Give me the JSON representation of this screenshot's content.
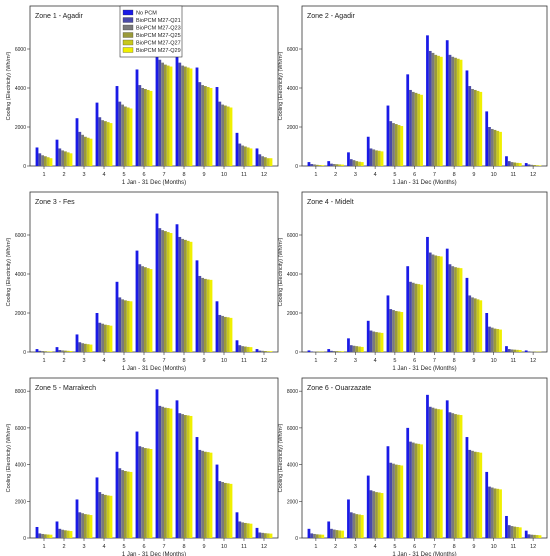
{
  "legend": [
    "No PCM",
    "BioPCM M27-Q21",
    "BioPCM M27-Q23",
    "BioPCM M27-Q25",
    "BioPCM M27-Q27",
    "BioPCM M27-Q29"
  ],
  "series_colors": [
    "#1a1ae6",
    "#4a4aa8",
    "#7a7a7a",
    "#9a9a3a",
    "#c8c81e",
    "#f0f000"
  ],
  "chart_data": [
    {
      "type": "bar",
      "title": "Zone 1 - Agadir",
      "xlabel": "1 Jan - 31 Dec (Months)",
      "ylabel": "Cooling (Electricity) (Wh/m²)",
      "categories": [
        "1",
        "2",
        "3",
        "4",
        "5",
        "6",
        "7",
        "8",
        "9",
        "10",
        "11",
        "12"
      ],
      "ylim": [
        0,
        8000
      ],
      "yticks": [
        0,
        2000,
        4000,
        6000
      ],
      "legend_position": "top-right",
      "series": [
        {
          "name": "No PCM",
          "values": [
            950,
            1350,
            2450,
            3250,
            4100,
            4950,
            6300,
            6100,
            5050,
            4050,
            1700,
            900
          ]
        },
        {
          "name": "BioPCM M27-Q21",
          "values": [
            650,
            900,
            1750,
            2500,
            3300,
            4150,
            5450,
            5300,
            4300,
            3300,
            1150,
            600
          ]
        },
        {
          "name": "BioPCM M27-Q23",
          "values": [
            550,
            800,
            1600,
            2350,
            3150,
            4000,
            5300,
            5150,
            4150,
            3150,
            1050,
            500
          ]
        },
        {
          "name": "BioPCM M27-Q25",
          "values": [
            500,
            750,
            1500,
            2300,
            3050,
            3950,
            5200,
            5100,
            4100,
            3100,
            1000,
            450
          ]
        },
        {
          "name": "BioPCM M27-Q27",
          "values": [
            450,
            700,
            1450,
            2250,
            3000,
            3900,
            5150,
            5050,
            4050,
            3050,
            950,
            400
          ]
        },
        {
          "name": "BioPCM M27-Q29",
          "values": [
            400,
            650,
            1400,
            2200,
            2950,
            3850,
            5100,
            5000,
            4000,
            3000,
            900,
            400
          ]
        }
      ]
    },
    {
      "type": "bar",
      "title": "Zone 2 - Agadir",
      "xlabel": "1 Jan - 31 Dec (Months)",
      "ylabel": "Cooling (Electricity) (Wh/m²)",
      "categories": [
        "1",
        "2",
        "3",
        "4",
        "5",
        "6",
        "7",
        "8",
        "9",
        "10",
        "11",
        "12"
      ],
      "ylim": [
        0,
        8000
      ],
      "yticks": [
        0,
        2000,
        4000,
        6000
      ],
      "series": [
        {
          "name": "No PCM",
          "values": [
            200,
            250,
            700,
            1500,
            3100,
            4700,
            6700,
            6450,
            4900,
            2800,
            500,
            150
          ]
        },
        {
          "name": "BioPCM M27-Q21",
          "values": [
            100,
            120,
            350,
            900,
            2300,
            3900,
            5900,
            5700,
            4100,
            2000,
            250,
            80
          ]
        },
        {
          "name": "BioPCM M27-Q23",
          "values": [
            80,
            100,
            300,
            850,
            2200,
            3800,
            5800,
            5600,
            3950,
            1900,
            200,
            60
          ]
        },
        {
          "name": "BioPCM M27-Q25",
          "values": [
            60,
            90,
            250,
            800,
            2150,
            3750,
            5700,
            5550,
            3900,
            1850,
            180,
            50
          ]
        },
        {
          "name": "BioPCM M27-Q27",
          "values": [
            50,
            80,
            220,
            780,
            2100,
            3700,
            5650,
            5500,
            3850,
            1800,
            160,
            40
          ]
        },
        {
          "name": "BioPCM M27-Q29",
          "values": [
            40,
            70,
            200,
            750,
            2050,
            3650,
            5600,
            5450,
            3800,
            1750,
            150,
            30
          ]
        }
      ]
    },
    {
      "type": "bar",
      "title": "Zone 3 - Fes",
      "xlabel": "1 Jan - 31 Dec (Months)",
      "ylabel": "Cooling (Electricity) (Wh/m²)",
      "categories": [
        "1",
        "2",
        "3",
        "4",
        "5",
        "6",
        "7",
        "8",
        "9",
        "10",
        "11",
        "12"
      ],
      "ylim": [
        0,
        8000
      ],
      "yticks": [
        0,
        2000,
        4000,
        6000
      ],
      "series": [
        {
          "name": "No PCM",
          "values": [
            150,
            250,
            900,
            2000,
            3600,
            5200,
            7100,
            6550,
            4700,
            2600,
            600,
            150
          ]
        },
        {
          "name": "BioPCM M27-Q21",
          "values": [
            60,
            100,
            500,
            1500,
            2800,
            4500,
            6350,
            5900,
            3900,
            1900,
            350,
            70
          ]
        },
        {
          "name": "BioPCM M27-Q23",
          "values": [
            50,
            80,
            450,
            1450,
            2700,
            4400,
            6250,
            5800,
            3800,
            1850,
            300,
            60
          ]
        },
        {
          "name": "BioPCM M27-Q25",
          "values": [
            40,
            70,
            420,
            1400,
            2650,
            4350,
            6200,
            5750,
            3750,
            1800,
            280,
            50
          ]
        },
        {
          "name": "BioPCM M27-Q27",
          "values": [
            30,
            60,
            400,
            1380,
            2620,
            4300,
            6150,
            5700,
            3720,
            1780,
            260,
            40
          ]
        },
        {
          "name": "BioPCM M27-Q29",
          "values": [
            30,
            50,
            380,
            1350,
            2600,
            4250,
            6100,
            5650,
            3700,
            1750,
            250,
            40
          ]
        }
      ]
    },
    {
      "type": "bar",
      "title": "Zone 4 - Midelt",
      "xlabel": "1 Jan - 31 Dec (Months)",
      "ylabel": "Cooling (Electricity) (Wh/m²)",
      "categories": [
        "1",
        "2",
        "3",
        "4",
        "5",
        "6",
        "7",
        "8",
        "9",
        "10",
        "11",
        "12"
      ],
      "ylim": [
        0,
        8000
      ],
      "yticks": [
        0,
        2000,
        4000,
        6000
      ],
      "series": [
        {
          "name": "No PCM",
          "values": [
            80,
            150,
            700,
            1600,
            2900,
            4400,
            5900,
            5300,
            3800,
            2000,
            300,
            80
          ]
        },
        {
          "name": "BioPCM M27-Q21",
          "values": [
            30,
            60,
            350,
            1100,
            2200,
            3600,
            5100,
            4500,
            2900,
            1300,
            150,
            30
          ]
        },
        {
          "name": "BioPCM M27-Q23",
          "values": [
            25,
            50,
            320,
            1050,
            2150,
            3550,
            5000,
            4400,
            2800,
            1250,
            130,
            25
          ]
        },
        {
          "name": "BioPCM M27-Q25",
          "values": [
            20,
            45,
            300,
            1020,
            2100,
            3500,
            4950,
            4350,
            2750,
            1200,
            120,
            20
          ]
        },
        {
          "name": "BioPCM M27-Q27",
          "values": [
            20,
            40,
            280,
            1000,
            2080,
            3480,
            4920,
            4320,
            2700,
            1180,
            110,
            20
          ]
        },
        {
          "name": "BioPCM M27-Q29",
          "values": [
            15,
            35,
            260,
            980,
            2050,
            3450,
            4900,
            4300,
            2650,
            1150,
            100,
            15
          ]
        }
      ]
    },
    {
      "type": "bar",
      "title": "Zone 5 - Marrakech",
      "xlabel": "1 Jan - 31 Dec (Months)",
      "ylabel": "Cooling (Electricity) (Wh/m²)",
      "categories": [
        "1",
        "2",
        "3",
        "4",
        "5",
        "6",
        "7",
        "8",
        "9",
        "10",
        "11",
        "12"
      ],
      "ylim": [
        0,
        8500
      ],
      "yticks": [
        0,
        2000,
        4000,
        6000,
        8000
      ],
      "series": [
        {
          "name": "No PCM",
          "values": [
            600,
            900,
            2100,
            3300,
            4700,
            5800,
            8100,
            7500,
            5500,
            4000,
            1400,
            550
          ]
        },
        {
          "name": "BioPCM M27-Q21",
          "values": [
            250,
            500,
            1400,
            2500,
            3800,
            5000,
            7200,
            6800,
            4800,
            3100,
            900,
            300
          ]
        },
        {
          "name": "BioPCM M27-Q23",
          "values": [
            220,
            450,
            1350,
            2400,
            3700,
            4950,
            7150,
            6750,
            4750,
            3050,
            850,
            280
          ]
        },
        {
          "name": "BioPCM M27-Q25",
          "values": [
            200,
            420,
            1300,
            2350,
            3650,
            4900,
            7100,
            6700,
            4700,
            3000,
            820,
            260
          ]
        },
        {
          "name": "BioPCM M27-Q27",
          "values": [
            190,
            400,
            1280,
            2320,
            3620,
            4880,
            7080,
            6680,
            4680,
            2980,
            800,
            250
          ]
        },
        {
          "name": "BioPCM M27-Q29",
          "values": [
            180,
            380,
            1250,
            2300,
            3600,
            4850,
            7050,
            6650,
            4650,
            2950,
            780,
            240
          ]
        }
      ]
    },
    {
      "type": "bar",
      "title": "Zone 6 - Ouarzazate",
      "xlabel": "1 Jan - 31 Dec (Months)",
      "ylabel": "Cooling (Electricity) (Wh/m²)",
      "categories": [
        "1",
        "2",
        "3",
        "4",
        "5",
        "6",
        "7",
        "8",
        "9",
        "10",
        "11",
        "12"
      ],
      "ylim": [
        0,
        8500
      ],
      "yticks": [
        0,
        2000,
        4000,
        6000,
        8000
      ],
      "series": [
        {
          "name": "No PCM",
          "values": [
            500,
            900,
            2100,
            3400,
            5000,
            6000,
            7800,
            7500,
            5500,
            3600,
            1200,
            400
          ]
        },
        {
          "name": "BioPCM M27-Q21",
          "values": [
            250,
            500,
            1400,
            2600,
            4100,
            5250,
            7150,
            6850,
            4800,
            2800,
            700,
            200
          ]
        },
        {
          "name": "BioPCM M27-Q23",
          "values": [
            220,
            460,
            1350,
            2550,
            4050,
            5200,
            7100,
            6800,
            4750,
            2750,
            650,
            180
          ]
        },
        {
          "name": "BioPCM M27-Q25",
          "values": [
            200,
            430,
            1300,
            2500,
            4000,
            5150,
            7050,
            6750,
            4700,
            2700,
            620,
            170
          ]
        },
        {
          "name": "BioPCM M27-Q27",
          "values": [
            190,
            410,
            1280,
            2480,
            3980,
            5130,
            7020,
            6720,
            4680,
            2680,
            600,
            160
          ]
        },
        {
          "name": "BioPCM M27-Q29",
          "values": [
            180,
            400,
            1250,
            2450,
            3950,
            5100,
            7000,
            6700,
            4650,
            2650,
            580,
            150
          ]
        }
      ]
    }
  ]
}
